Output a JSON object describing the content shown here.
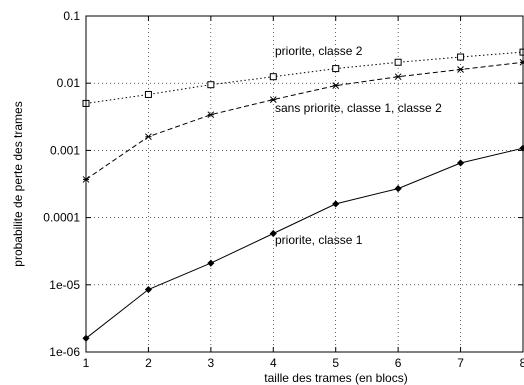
{
  "chart_data": {
    "type": "line",
    "xlabel": "taille des trames (en blocs)",
    "ylabel": "probabilite de perte des trames",
    "yscale": "log",
    "xlim": [
      1,
      8
    ],
    "ylim": [
      1e-06,
      0.1
    ],
    "grid": true,
    "x": [
      1,
      2,
      3,
      4,
      5,
      6,
      7,
      8
    ],
    "x_tick_labels": [
      "1",
      "2",
      "3",
      "4",
      "5",
      "6",
      "7",
      "8"
    ],
    "y_ticks": [
      1e-06,
      1e-05,
      0.0001,
      0.001,
      0.01,
      0.1
    ],
    "y_tick_labels": [
      "1e-06",
      "1e-05",
      "0.0001",
      "0.001",
      "0.01",
      "0.1"
    ],
    "series": [
      {
        "annotation": "priorite, classe 2",
        "marker": "square",
        "line_style": "dotted",
        "values": [
          0.005,
          0.0068,
          0.0095,
          0.0125,
          0.0165,
          0.0205,
          0.0245,
          0.029
        ]
      },
      {
        "annotation": "sans priorite, classe 1, classe 2",
        "marker": "star",
        "line_style": "dashed",
        "values": [
          0.00037,
          0.0016,
          0.0034,
          0.0057,
          0.0092,
          0.0125,
          0.016,
          0.0205
        ]
      },
      {
        "annotation": "priorite, classe 1",
        "marker": "diamond",
        "line_style": "solid",
        "values": [
          1.6e-06,
          8.5e-06,
          2.1e-05,
          5.8e-05,
          0.00016,
          0.00027,
          0.00065,
          0.00108
        ]
      }
    ]
  }
}
